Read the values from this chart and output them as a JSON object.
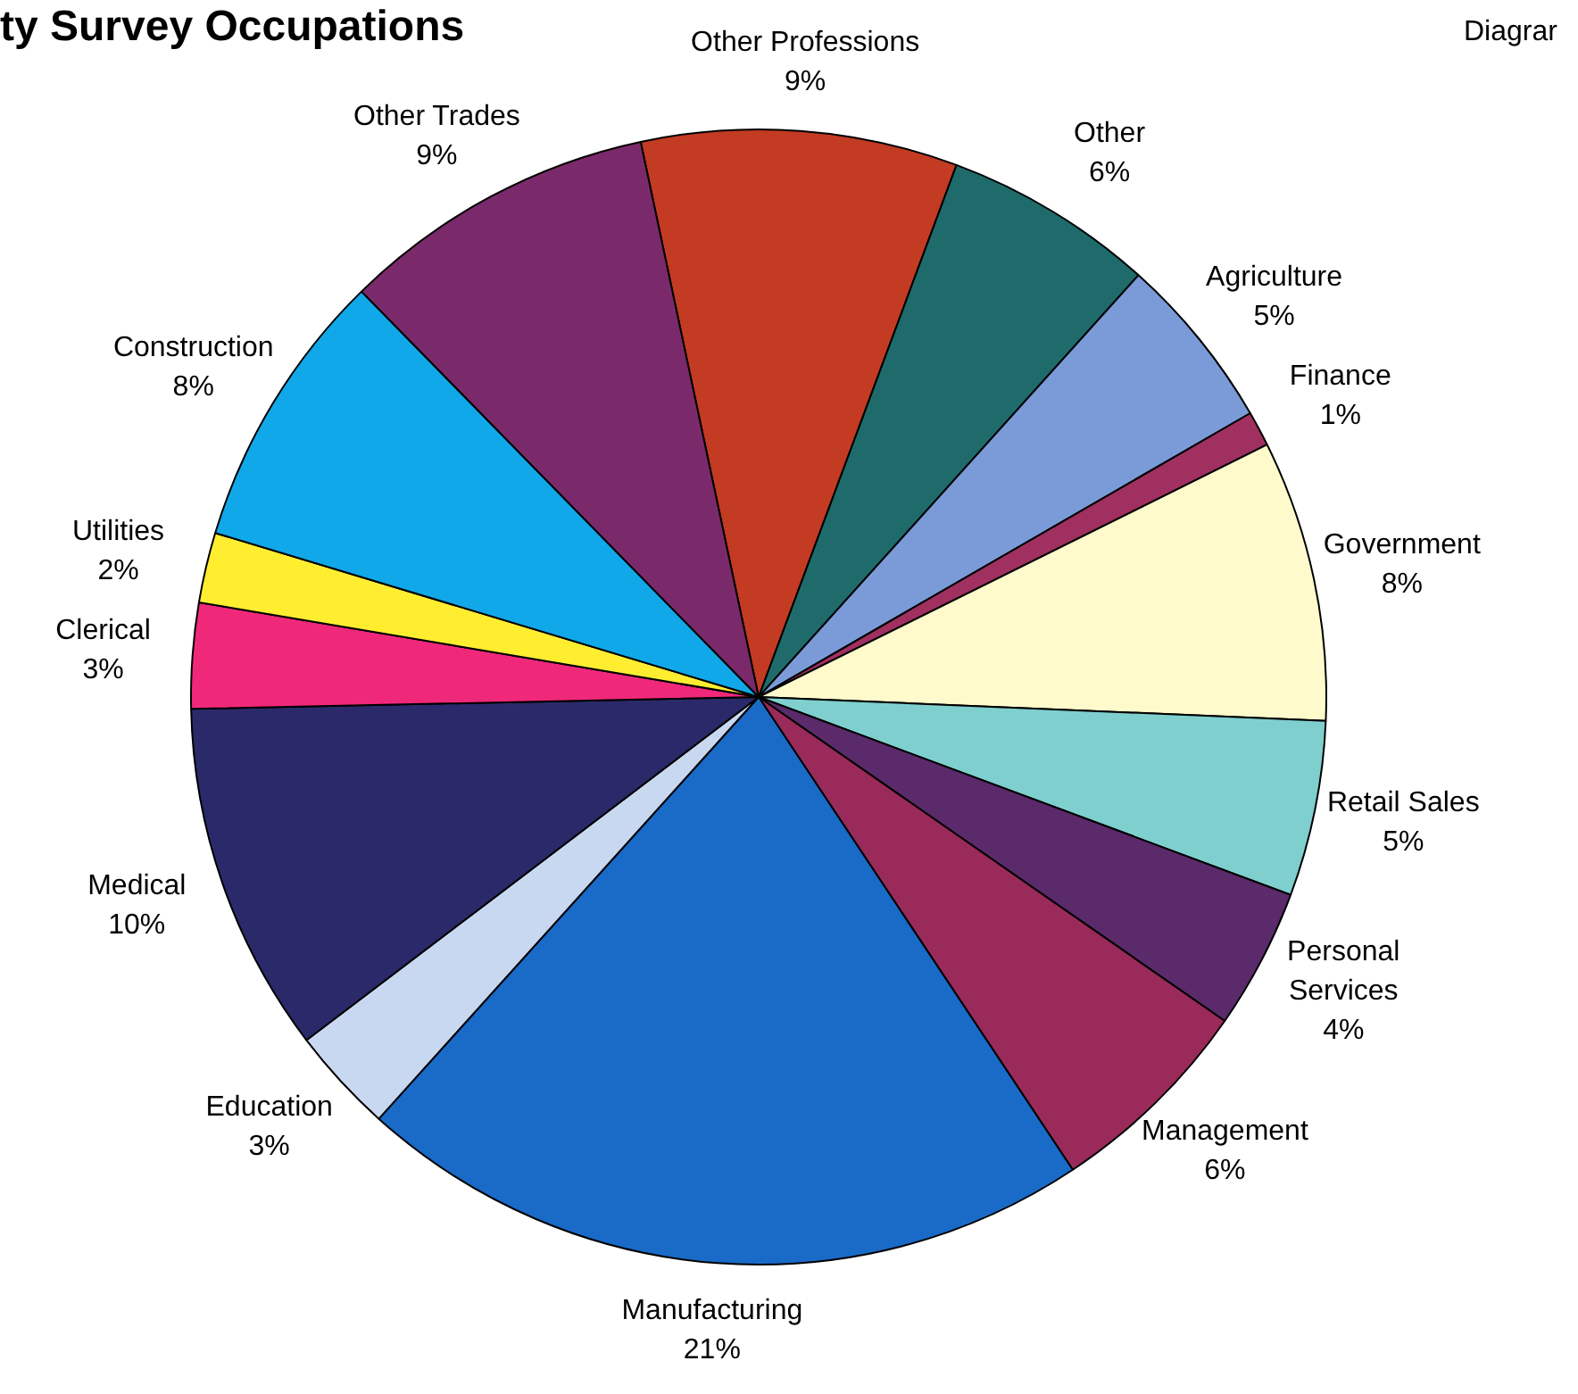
{
  "chart_data": {
    "type": "pie",
    "title": "ty Survey Occupations",
    "annotations": [
      "Diagrar"
    ],
    "categories": [
      "Other Professions",
      "Other",
      "Agriculture",
      "Finance",
      "Government",
      "Retail Sales",
      "Personal Services",
      "Management",
      "Manufacturing",
      "Education",
      "Medical",
      "Clerical",
      "Utilities",
      "Construction",
      "Other Trades"
    ],
    "values": [
      9,
      6,
      5,
      1,
      8,
      5,
      4,
      6,
      21,
      3,
      10,
      3,
      2,
      8,
      9
    ],
    "value_labels": [
      "9%",
      "6%",
      "5%",
      "1%",
      "8%",
      "5%",
      "4%",
      "6%",
      "21%",
      "3%",
      "10%",
      "3%",
      "2%",
      "8%",
      "9%"
    ],
    "colors": [
      "#c23b22",
      "#1f6b6b",
      "#7b9bd8",
      "#a03060",
      "#fffacc",
      "#7fcfcf",
      "#5a2a6a",
      "#9a2a5a",
      "#1a6ac8",
      "#c8d8f0",
      "#2a2a6a",
      "#f0287a",
      "#ffee30",
      "#10a8e8",
      "#7a2a6a"
    ],
    "legend": false
  }
}
